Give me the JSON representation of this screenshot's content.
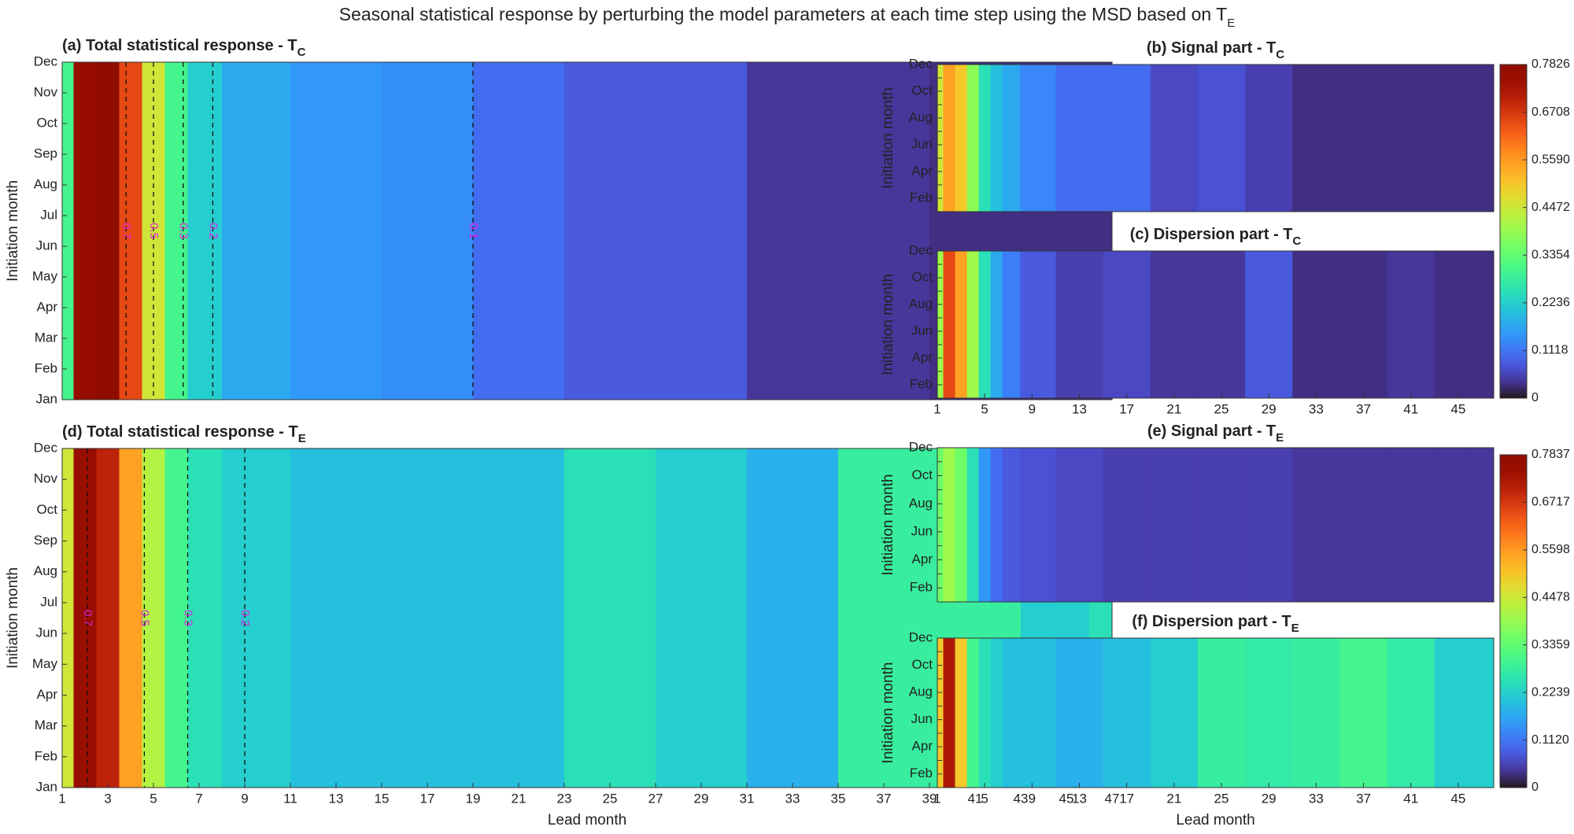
{
  "title": "Seasonal statistical response by perturbing the model parameters at each time step using the MSD based on T",
  "title_sub": "E",
  "colorbars": [
    {
      "lim": [
        0,
        0.7826
      ],
      "ticks": [
        0,
        0.1118,
        0.2236,
        0.3354,
        0.4472,
        {
          "value": 0.559,
          "label": "0.5590"
        },
        0.6708,
        0.7826
      ]
    },
    {
      "lim": [
        0,
        0.7837
      ],
      "ticks": [
        0,
        {
          "value": 0.112,
          "label": "0.1120"
        },
        0.2239,
        0.3359,
        0.4478,
        0.5598,
        0.6717,
        0.7837
      ]
    }
  ],
  "chart_data": [
    {
      "type": "heatmap",
      "title": "(a) Total statistical response - T",
      "title_sub": "C",
      "ylabel": "Initiation month",
      "categories": [
        "Jan",
        "Feb",
        "Mar",
        "Apr",
        "May",
        "Jun",
        "Jul",
        "Aug",
        "Sep",
        "Oct",
        "Nov",
        "Dec"
      ],
      "xlim": [
        1,
        47
      ],
      "x": [
        1,
        2,
        3,
        4,
        5,
        6,
        7,
        9,
        13,
        17,
        21,
        25,
        29,
        33,
        37,
        41,
        45,
        47
      ],
      "values": [
        0.3,
        0.75,
        0.78,
        0.65,
        0.45,
        0.3,
        0.22,
        0.17,
        0.15,
        0.14,
        0.1,
        0.08,
        0.08,
        0.04,
        0.04,
        0.03,
        0.03,
        0.03
      ],
      "contours": [
        {
          "level": 0.7,
          "x": 3.8
        },
        {
          "level": 0.5,
          "x": 5
        },
        {
          "level": 0.3,
          "x": 6.3
        },
        {
          "level": 0.2,
          "x": 7.6
        },
        {
          "level": 0.1,
          "x": 19
        }
      ]
    },
    {
      "type": "heatmap",
      "title": "(b) Signal part - T",
      "title_sub": "C",
      "ylabel": "Initiation month",
      "categories": [
        null,
        "Feb",
        null,
        "Apr",
        null,
        "Jun",
        null,
        "Aug",
        null,
        "Oct",
        null,
        "Dec"
      ],
      "xlim": [
        1,
        48
      ],
      "x": [
        1,
        2,
        3,
        4,
        5,
        6,
        7,
        9,
        13,
        17,
        21,
        25,
        29,
        33,
        37,
        41,
        45,
        47
      ],
      "values": [
        0.45,
        0.55,
        0.5,
        0.38,
        0.25,
        0.2,
        0.17,
        0.13,
        0.1,
        0.1,
        0.06,
        0.07,
        0.05,
        0.03,
        0.03,
        0.03,
        0.03,
        0.03
      ]
    },
    {
      "type": "heatmap",
      "title": "(c) Dispersion part - T",
      "title_sub": "C",
      "ylabel": "Initiation month",
      "categories": [
        null,
        "Feb",
        null,
        "Apr",
        null,
        "Jun",
        null,
        "Aug",
        null,
        "Oct",
        null,
        "Dec"
      ],
      "xlim": [
        1,
        48
      ],
      "xticks": [
        1,
        5,
        9,
        13,
        17,
        21,
        25,
        29,
        33,
        37,
        41,
        45
      ],
      "x": [
        1,
        2,
        3,
        4,
        5,
        6,
        7,
        9,
        13,
        17,
        21,
        25,
        29,
        33,
        37,
        41,
        45,
        47
      ],
      "values": [
        0.4,
        0.65,
        0.55,
        0.4,
        0.25,
        0.17,
        0.12,
        0.08,
        0.05,
        0.06,
        0.04,
        0.04,
        0.08,
        0.03,
        0.03,
        0.04,
        0.03,
        0.03
      ]
    },
    {
      "type": "heatmap",
      "title": "(d) Total statistical response - T",
      "title_sub": "E",
      "ylabel": "Initiation month",
      "xlabel": "Lead month",
      "categories": [
        "Jan",
        "Feb",
        "Mar",
        "Apr",
        "May",
        "Jun",
        "Jul",
        "Aug",
        "Sep",
        "Oct",
        "Nov",
        "Dec"
      ],
      "xlim": [
        1,
        47
      ],
      "xticks": [
        1,
        3,
        5,
        7,
        9,
        11,
        13,
        15,
        17,
        19,
        21,
        23,
        25,
        27,
        29,
        31,
        33,
        35,
        37,
        39,
        41,
        43,
        45,
        47
      ],
      "x": [
        1,
        2,
        3,
        4,
        5,
        6,
        7,
        9,
        13,
        17,
        21,
        25,
        29,
        33,
        37,
        41,
        45,
        47
      ],
      "values": [
        0.45,
        0.75,
        0.7,
        0.55,
        0.42,
        0.3,
        0.25,
        0.22,
        0.2,
        0.2,
        0.2,
        0.25,
        0.22,
        0.18,
        0.28,
        0.28,
        0.22,
        0.25
      ],
      "contours": [
        {
          "level": 0.7,
          "x": 2.1
        },
        {
          "level": 0.5,
          "x": 4.6
        },
        {
          "level": 0.3,
          "x": 6.5
        },
        {
          "level": 0.2,
          "x": 9
        }
      ]
    },
    {
      "type": "heatmap",
      "title": "(e) Signal part - T",
      "title_sub": "E",
      "ylabel": "Initiation month",
      "categories": [
        null,
        "Feb",
        null,
        "Apr",
        null,
        "Jun",
        null,
        "Aug",
        null,
        "Oct",
        null,
        "Dec"
      ],
      "xlim": [
        1,
        48
      ],
      "x": [
        1,
        2,
        3,
        4,
        5,
        6,
        7,
        9,
        13,
        17,
        21,
        25,
        29,
        33,
        37,
        41,
        45,
        47
      ],
      "values": [
        0.35,
        0.4,
        0.35,
        0.25,
        0.15,
        0.1,
        0.08,
        0.07,
        0.06,
        0.05,
        0.05,
        0.05,
        0.05,
        0.04,
        0.04,
        0.04,
        0.04,
        0.04
      ]
    },
    {
      "type": "heatmap",
      "title": "(f) Dispersion part - T",
      "title_sub": "E",
      "ylabel": "Initiation month",
      "xlabel": "Lead month",
      "categories": [
        null,
        "Feb",
        null,
        "Apr",
        null,
        "Jun",
        null,
        "Aug",
        null,
        "Oct",
        null,
        "Dec"
      ],
      "xlim": [
        1,
        48
      ],
      "xticks": [
        1,
        5,
        9,
        13,
        17,
        21,
        25,
        29,
        33,
        37,
        41,
        45
      ],
      "x": [
        1,
        2,
        3,
        4,
        5,
        6,
        7,
        9,
        13,
        17,
        21,
        25,
        29,
        33,
        37,
        41,
        45,
        47
      ],
      "values": [
        0.5,
        0.72,
        0.5,
        0.3,
        0.25,
        0.22,
        0.2,
        0.2,
        0.18,
        0.2,
        0.22,
        0.28,
        0.27,
        0.28,
        0.3,
        0.27,
        0.22,
        0.22
      ]
    }
  ]
}
